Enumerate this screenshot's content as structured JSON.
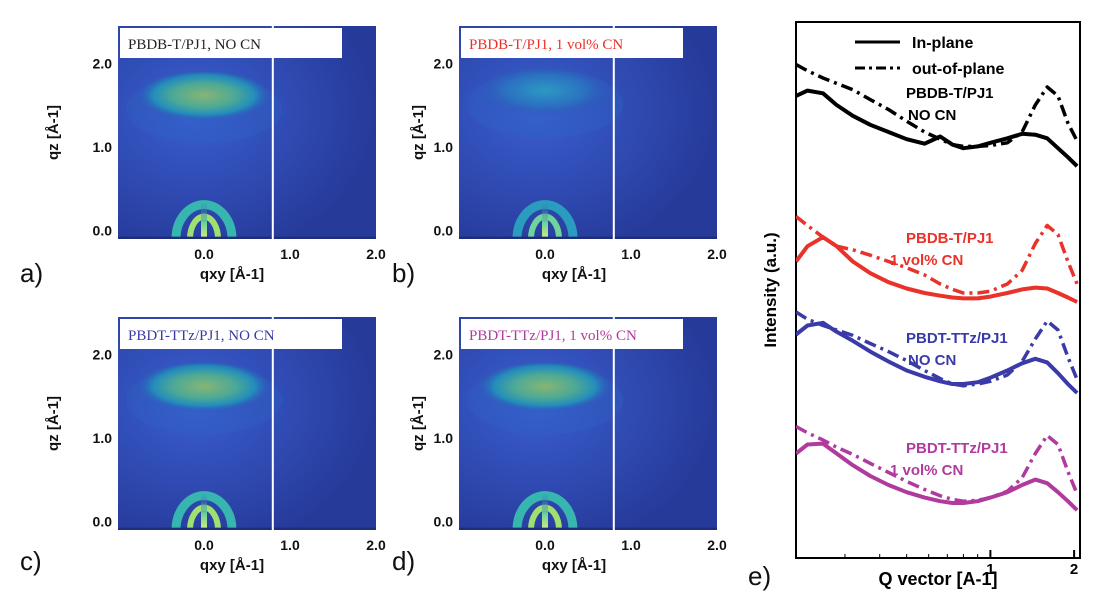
{
  "figure": {
    "panel_letters": [
      "a)",
      "b)",
      "c)",
      "d)",
      "e)"
    ]
  },
  "chart_data": [
    {
      "type": "heatmap",
      "panel": "a)",
      "title": "PBDB-T/PJ1, NO CN",
      "title_color": "#222222",
      "xlabel": "qxy [Å-1]",
      "ylabel": "qz [Å-1]",
      "xlim": [
        -1.0,
        2.0
      ],
      "ylim": [
        -0.1,
        2.45
      ],
      "x_ticks": [
        "0.0",
        "1.0",
        "2.0"
      ],
      "y_ticks": [
        "0.0",
        "1.0",
        "2.0"
      ],
      "features": [
        {
          "name": "out-of-plane lamellar arc",
          "qxy_center": 0.0,
          "qz_center": 1.62,
          "intensity": 0.85
        },
        {
          "name": "low-q rings",
          "qxy_center": 0.0,
          "qz_center": 0.0,
          "intensity": 0.95
        }
      ],
      "divider_qxy": 0.8
    },
    {
      "type": "heatmap",
      "panel": "b)",
      "title": "PBDB-T/PJ1, 1 vol% CN",
      "title_color": "#e8322a",
      "xlabel": "qxy [Å-1]",
      "ylabel": "qz [Å-1]",
      "xlim": [
        -1.0,
        2.0
      ],
      "ylim": [
        -0.1,
        2.45
      ],
      "x_ticks": [
        "0.0",
        "1.0",
        "2.0"
      ],
      "y_ticks": [
        "0.0",
        "1.0",
        "2.0"
      ],
      "features": [
        {
          "name": "out-of-plane lamellar arc",
          "qxy_center": 0.0,
          "qz_center": 1.68,
          "intensity": 0.6
        },
        {
          "name": "low-q rings",
          "qxy_center": 0.0,
          "qz_center": 0.0,
          "intensity": 0.8
        }
      ],
      "divider_qxy": 0.8
    },
    {
      "type": "heatmap",
      "panel": "c)",
      "title": "PBDT-TTz/PJ1, NO CN",
      "title_color": "#3a3aa8",
      "xlabel": "qxy [Å-1]",
      "ylabel": "qz [Å-1]",
      "xlim": [
        -1.0,
        2.0
      ],
      "ylim": [
        -0.1,
        2.45
      ],
      "x_ticks": [
        "0.0",
        "1.0",
        "2.0"
      ],
      "y_ticks": [
        "0.0",
        "1.0",
        "2.0"
      ],
      "features": [
        {
          "name": "out-of-plane lamellar arc",
          "qxy_center": 0.0,
          "qz_center": 1.62,
          "intensity": 0.8
        },
        {
          "name": "low-q rings",
          "qxy_center": 0.0,
          "qz_center": 0.0,
          "intensity": 0.95
        }
      ],
      "divider_qxy": 0.8
    },
    {
      "type": "heatmap",
      "panel": "d)",
      "title": "PBDT-TTz/PJ1, 1 vol% CN",
      "title_color": "#b03a9e",
      "xlabel": "qxy [Å-1]",
      "ylabel": "qz [Å-1]",
      "xlim": [
        -1.0,
        2.0
      ],
      "ylim": [
        -0.1,
        2.45
      ],
      "x_ticks": [
        "0.0",
        "1.0",
        "2.0"
      ],
      "y_ticks": [
        "0.0",
        "1.0",
        "2.0"
      ],
      "features": [
        {
          "name": "out-of-plane lamellar arc",
          "qxy_center": 0.0,
          "qz_center": 1.62,
          "intensity": 0.8
        },
        {
          "name": "low-q rings",
          "qxy_center": 0.0,
          "qz_center": 0.0,
          "intensity": 0.95
        }
      ],
      "divider_qxy": 0.8
    },
    {
      "type": "line",
      "panel": "e)",
      "xlabel": "Q vector [A-1]",
      "ylabel": "Intensity (a.u.)",
      "x_scale": "log",
      "xlim": [
        0.2,
        2.1
      ],
      "x_ticks": [
        "1",
        "2"
      ],
      "legend": {
        "position": "top",
        "entries": [
          {
            "label": "In-plane",
            "style": "solid"
          },
          {
            "label": "out-of-plane",
            "style": "dash-dot"
          }
        ]
      },
      "groups": [
        {
          "label_line1": "PBDB-T/PJ1",
          "label_line2": "NO CN",
          "color": "#000000",
          "x": [
            0.2,
            0.22,
            0.25,
            0.28,
            0.32,
            0.37,
            0.43,
            0.5,
            0.58,
            0.66,
            0.73,
            0.8,
            0.9,
            1.0,
            1.15,
            1.3,
            1.45,
            1.6,
            1.75,
            1.9,
            2.05
          ],
          "series": [
            {
              "style": "solid",
              "values": [
                1.0,
                1.06,
                1.03,
                0.9,
                0.78,
                0.68,
                0.6,
                0.52,
                0.47,
                0.55,
                0.46,
                0.42,
                0.44,
                0.48,
                0.53,
                0.58,
                0.57,
                0.53,
                0.42,
                0.32,
                0.22
              ]
            },
            {
              "style": "dash-dot",
              "values": [
                1.35,
                1.28,
                1.2,
                1.14,
                1.07,
                0.96,
                0.85,
                0.72,
                0.6,
                0.52,
                0.46,
                0.44,
                0.44,
                0.45,
                0.48,
                0.6,
                0.9,
                1.1,
                1.0,
                0.7,
                0.5
              ]
            }
          ]
        },
        {
          "label_line1": "PBDB-T/PJ1",
          "label_line2": "1 vol% CN",
          "color": "#e8322a",
          "x": [
            0.2,
            0.22,
            0.25,
            0.28,
            0.32,
            0.37,
            0.43,
            0.5,
            0.58,
            0.66,
            0.73,
            0.8,
            0.9,
            1.0,
            1.15,
            1.3,
            1.45,
            1.6,
            1.75,
            1.9,
            2.05
          ],
          "series": [
            {
              "style": "solid",
              "values": [
                0.55,
                0.72,
                0.82,
                0.72,
                0.55,
                0.42,
                0.32,
                0.25,
                0.2,
                0.17,
                0.15,
                0.14,
                0.14,
                0.16,
                0.2,
                0.24,
                0.26,
                0.25,
                0.2,
                0.15,
                0.1
              ]
            },
            {
              "style": "dash-dot",
              "values": [
                1.05,
                0.95,
                0.82,
                0.72,
                0.68,
                0.62,
                0.55,
                0.48,
                0.4,
                0.3,
                0.24,
                0.2,
                0.2,
                0.22,
                0.3,
                0.45,
                0.75,
                0.95,
                0.85,
                0.55,
                0.3
              ]
            }
          ]
        },
        {
          "label_line1": "PBDT-TTz/PJ1",
          "label_line2": "NO CN",
          "color": "#3a3aa8",
          "x": [
            0.2,
            0.22,
            0.25,
            0.28,
            0.32,
            0.37,
            0.43,
            0.5,
            0.58,
            0.66,
            0.73,
            0.8,
            0.9,
            1.0,
            1.15,
            1.3,
            1.45,
            1.6,
            1.75,
            1.9,
            2.05
          ],
          "series": [
            {
              "style": "solid",
              "values": [
                0.85,
                0.95,
                0.98,
                0.88,
                0.78,
                0.66,
                0.55,
                0.45,
                0.38,
                0.33,
                0.3,
                0.3,
                0.32,
                0.37,
                0.45,
                0.53,
                0.58,
                0.54,
                0.42,
                0.3,
                0.2
              ]
            },
            {
              "style": "dash-dot",
              "values": [
                1.1,
                1.02,
                0.95,
                0.9,
                0.84,
                0.75,
                0.66,
                0.56,
                0.45,
                0.36,
                0.3,
                0.28,
                0.3,
                0.33,
                0.4,
                0.55,
                0.8,
                1.0,
                0.9,
                0.6,
                0.35
              ]
            }
          ]
        },
        {
          "label_line1": "PBDT-TTz/PJ1",
          "label_line2": "1 vol% CN",
          "color": "#b03a9e",
          "x": [
            0.2,
            0.22,
            0.25,
            0.28,
            0.32,
            0.37,
            0.43,
            0.5,
            0.58,
            0.66,
            0.73,
            0.8,
            0.9,
            1.0,
            1.15,
            1.3,
            1.45,
            1.6,
            1.75,
            1.9,
            2.05
          ],
          "series": [
            {
              "style": "solid",
              "values": [
                0.75,
                0.85,
                0.86,
                0.75,
                0.62,
                0.5,
                0.4,
                0.32,
                0.26,
                0.22,
                0.2,
                0.2,
                0.22,
                0.26,
                0.32,
                0.4,
                0.46,
                0.42,
                0.32,
                0.22,
                0.12
              ]
            },
            {
              "style": "dash-dot",
              "values": [
                1.05,
                0.98,
                0.9,
                0.82,
                0.74,
                0.64,
                0.54,
                0.44,
                0.35,
                0.28,
                0.24,
                0.22,
                0.23,
                0.26,
                0.33,
                0.48,
                0.75,
                0.95,
                0.85,
                0.55,
                0.3
              ]
            }
          ]
        }
      ]
    }
  ]
}
